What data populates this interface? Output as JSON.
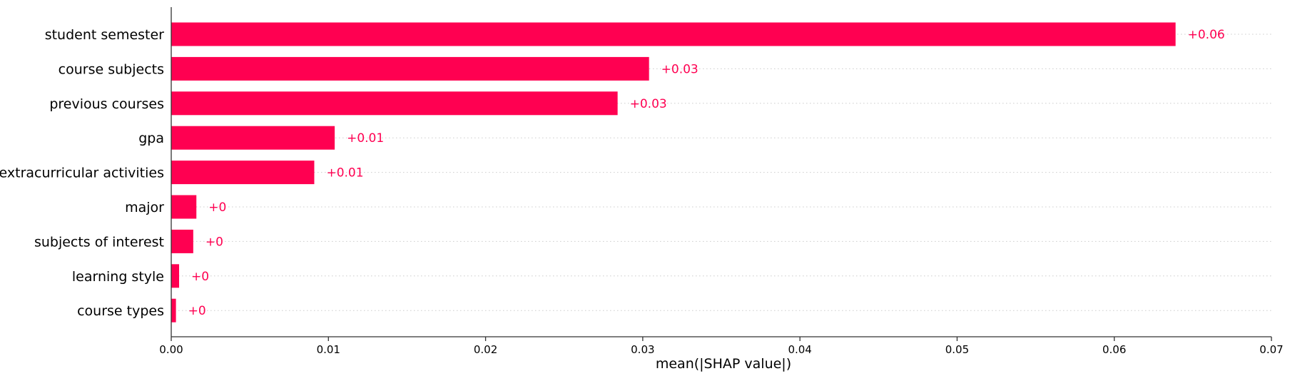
{
  "chart_data": {
    "type": "bar",
    "orientation": "horizontal",
    "categories": [
      "student semester",
      "course subjects",
      "previous courses",
      "gpa",
      "extracurricular activities",
      "major",
      "subjects of interest",
      "learning style",
      "course types"
    ],
    "values": [
      0.0639,
      0.0304,
      0.0284,
      0.0104,
      0.0091,
      0.0016,
      0.0014,
      0.0005,
      0.0003
    ],
    "value_labels": [
      "+0.06",
      "+0.03",
      "+0.03",
      "+0.01",
      "+0.01",
      "+0",
      "+0",
      "+0",
      "+0"
    ],
    "xlabel": "mean(|SHAP value|)",
    "xlim": [
      0,
      0.07
    ],
    "xticks": [
      0.0,
      0.01,
      0.02,
      0.03,
      0.04,
      0.05,
      0.06,
      0.07
    ],
    "xtick_labels": [
      "0.00",
      "0.01",
      "0.02",
      "0.03",
      "0.04",
      "0.05",
      "0.06",
      "0.07"
    ],
    "grid": "horizontal dotted row guides",
    "colors": {
      "bar": "#ff0051",
      "value_label": "#ff0051",
      "axis": "#333333",
      "text": "#000000",
      "guide": "#cccccc"
    }
  }
}
